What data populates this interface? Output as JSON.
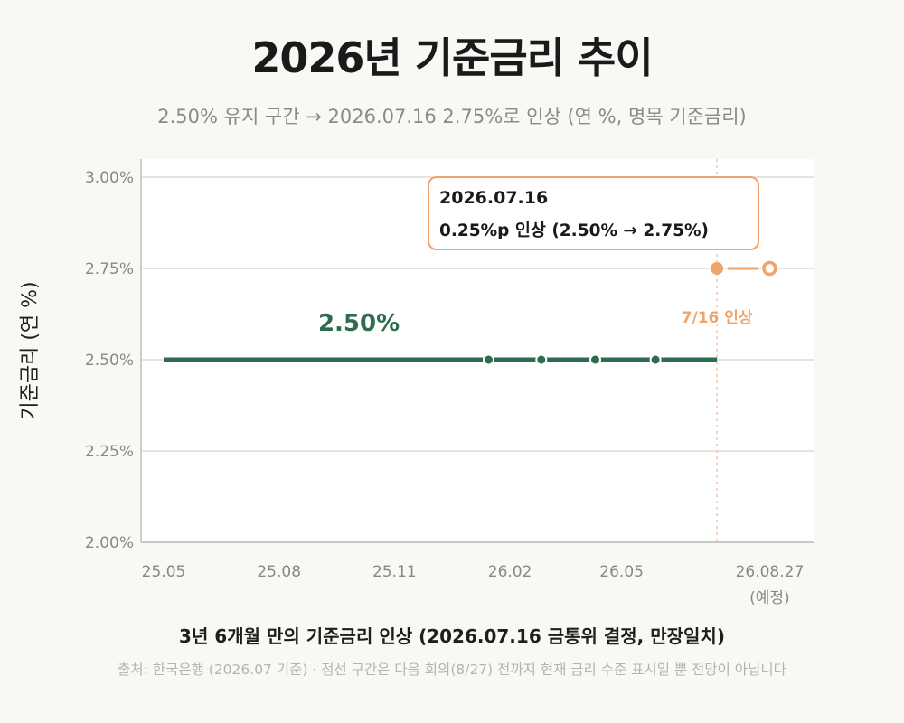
{
  "title": "2026년 기준금리 추이",
  "subtitle": "2.50% 유지 구간 → 2026.07.16 2.75%로 인상 (연 %, 명목 기준금리)",
  "caption": "3년 6개월 만의 기준금리 인상 (2026.07.16 금통위 결정, 만장일치)",
  "source": "출처: 한국은행 (2026.07 기준) · 점선 구간은 다음 회의(8/27) 전까지 현재 금리 수준 표시일 뿐 전망이 아닙니다",
  "colors": {
    "hold": "#2e6b4f",
    "hike": "#f0a46b",
    "grid": "#dedcd6",
    "axis": "#bdbdbd",
    "plot_bg": "#ffffff",
    "page_bg": "#f9f8f5"
  },
  "chart_data": {
    "type": "line",
    "ylabel": "기준금리 (연 %)",
    "xlabel": "",
    "ylim": [
      2.0,
      3.0
    ],
    "xlim": [
      "2025-05",
      "2026-10"
    ],
    "y_ticks": [
      "2.00%",
      "2.25%",
      "2.50%",
      "2.75%",
      "3.00%"
    ],
    "x_ticks": [
      {
        "x": "2025-05",
        "label": "25.05"
      },
      {
        "x": "2025-08",
        "label": "25.08"
      },
      {
        "x": "2025-11",
        "label": "25.11"
      },
      {
        "x": "2026-02",
        "label": "26.02"
      },
      {
        "x": "2026-05",
        "label": "26.05"
      },
      {
        "x": "2026-08-27",
        "label": "26.08.27",
        "sublabel": "(예정)"
      }
    ],
    "grid": true,
    "series": [
      {
        "segment": "hold",
        "x": [
          "2025-05",
          "2026-07-16"
        ],
        "values": [
          2.5,
          2.5
        ],
        "label": "2.50%"
      },
      {
        "segment": "hike",
        "x": [
          "2026-07-16",
          "2026-08-27"
        ],
        "values": [
          2.75,
          2.75
        ],
        "label": "7/16 인상"
      }
    ],
    "meeting_markers": [
      {
        "x": "2026-01-15",
        "value": 2.5
      },
      {
        "x": "2026-02-26",
        "value": 2.5
      },
      {
        "x": "2026-04-10",
        "value": 2.5
      },
      {
        "x": "2026-05-28",
        "value": 2.5
      }
    ],
    "event_line": {
      "x": "2026-07-16"
    },
    "annotation": {
      "date": "2026.07.16",
      "text": "0.25%p 인상 (2.50% → 2.75%)"
    }
  }
}
